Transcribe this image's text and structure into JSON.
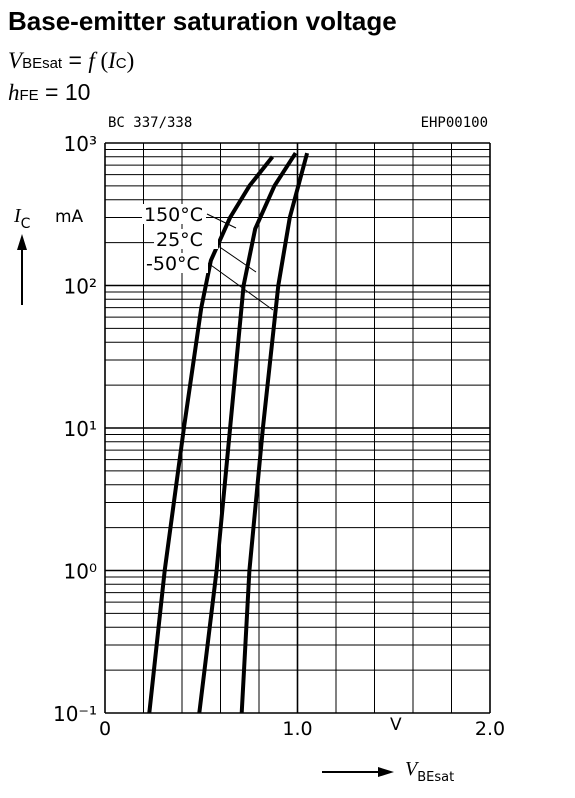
{
  "chart_data": {
    "type": "line",
    "title": "Base-emitter saturation voltage",
    "subtitle_parts": [
      "V",
      "BEsat",
      " = ",
      "f",
      " (",
      "I",
      "C",
      ")"
    ],
    "condition_parts": [
      "h",
      "FE",
      " = 10"
    ],
    "annotations": [
      "BC 337/338",
      "EHP00100"
    ],
    "y_label_parts": [
      "I",
      "C"
    ],
    "y_unit": "mA",
    "x_label_parts": [
      "V",
      "BEsat"
    ],
    "x_unit": "V",
    "xlim": [
      0,
      2
    ],
    "xticks": [
      0,
      {
        "value": 1,
        "label": "1.0"
      },
      {
        "value": 2,
        "label": "2.0"
      }
    ],
    "x_minor_ticks": [
      0.2,
      0.4,
      0.6,
      0.8,
      1.2,
      1.4,
      1.6,
      1.8
    ],
    "ylim": [
      0.1,
      1000
    ],
    "log_y": true,
    "yticks": [
      {
        "value": 0.1,
        "label": "10⁻¹"
      },
      {
        "value": 1,
        "label": "10⁰"
      },
      {
        "value": 10,
        "label": "10¹"
      },
      {
        "value": 100,
        "label": "10²"
      },
      {
        "value": 1000,
        "label": "10³"
      }
    ],
    "y_minor_ticks": [
      0.2,
      0.3,
      0.4,
      0.5,
      0.6,
      0.7,
      0.8,
      0.9,
      2,
      3,
      4,
      5,
      6,
      7,
      8,
      9,
      20,
      30,
      40,
      50,
      60,
      70,
      80,
      90,
      200,
      300,
      400,
      500,
      600,
      700,
      800,
      900
    ],
    "grid": true,
    "series": [
      {
        "name": "150°C",
        "color": "#000000",
        "x": [
          0.23,
          0.31,
          0.41,
          0.5,
          0.55,
          0.65,
          0.75,
          0.87
        ],
        "values": [
          0.1,
          1,
          10,
          70,
          150,
          300,
          500,
          800
        ]
      },
      {
        "name": "25°C",
        "color": "#000000",
        "x": [
          0.49,
          0.58,
          0.65,
          0.72,
          0.78,
          0.88,
          0.99
        ],
        "values": [
          0.1,
          1,
          10,
          100,
          250,
          500,
          850
        ]
      },
      {
        "name": "-50°C",
        "color": "#000000",
        "x": [
          0.71,
          0.75,
          0.82,
          0.9,
          0.96,
          1.05
        ],
        "values": [
          0.1,
          1,
          10,
          100,
          300,
          850
        ]
      }
    ]
  }
}
